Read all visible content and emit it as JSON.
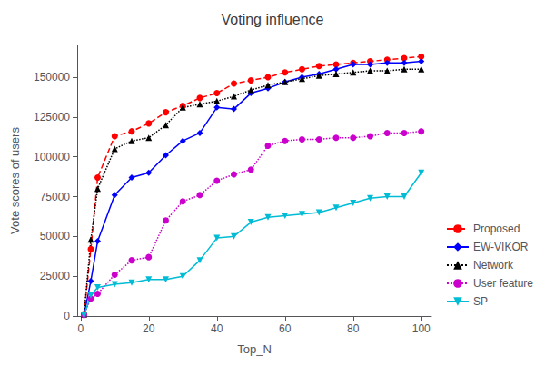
{
  "chart_data": {
    "type": "line",
    "title": "Voting influence",
    "xlabel": "Top_N",
    "ylabel": "Vote scores of users",
    "x": [
      1,
      3,
      5,
      10,
      15,
      20,
      25,
      30,
      35,
      40,
      45,
      50,
      55,
      60,
      65,
      70,
      75,
      80,
      85,
      90,
      95,
      100
    ],
    "series": [
      {
        "name": "Proposed",
        "color": "#ff0000",
        "marker": "circle",
        "line_style": "dashed",
        "values": [
          1200,
          42000,
          87000,
          113000,
          116000,
          121000,
          128000,
          132000,
          137000,
          140000,
          146000,
          148000,
          150000,
          153000,
          155000,
          157000,
          158000,
          159000,
          160000,
          161000,
          162000,
          163000
        ]
      },
      {
        "name": "EW-VIKOR",
        "color": "#0000ff",
        "marker": "diamond",
        "line_style": "solid",
        "values": [
          800,
          22000,
          47000,
          76000,
          87000,
          90000,
          101000,
          110000,
          115000,
          131000,
          130000,
          140000,
          143000,
          147000,
          150000,
          152000,
          155000,
          158000,
          158000,
          159000,
          159000,
          160000
        ]
      },
      {
        "name": "Network",
        "color": "#000000",
        "marker": "triangle",
        "line_style": "dotted",
        "values": [
          1000,
          48000,
          80000,
          105000,
          110000,
          112000,
          120000,
          131000,
          133000,
          135000,
          138000,
          142000,
          145000,
          147000,
          149000,
          151000,
          152000,
          153000,
          154000,
          154000,
          155000,
          155000
        ]
      },
      {
        "name": "User feature",
        "color": "#cc00cc",
        "marker": "circle",
        "line_style": "dotted",
        "values": [
          800,
          11000,
          14000,
          26000,
          35000,
          37000,
          60000,
          72000,
          76000,
          85000,
          89000,
          92000,
          107000,
          110000,
          111000,
          111000,
          112000,
          112000,
          113000,
          115000,
          115000,
          116000
        ]
      },
      {
        "name": "SP",
        "color": "#00bcd4",
        "marker": "triangle_down",
        "line_style": "solid",
        "values": [
          400,
          13000,
          18000,
          20000,
          21000,
          23000,
          23000,
          25000,
          35000,
          49000,
          50000,
          59000,
          62000,
          63000,
          64000,
          65000,
          68000,
          71000,
          74000,
          75000,
          75000,
          90000
        ]
      }
    ],
    "xlim": [
      -1,
      103
    ],
    "ylim": [
      0,
      170000
    ],
    "xticks": [
      0,
      20,
      40,
      60,
      80,
      100
    ],
    "yticks": [
      0,
      25000,
      50000,
      75000,
      100000,
      125000,
      150000
    ],
    "grid": false,
    "legend": "lower right"
  }
}
